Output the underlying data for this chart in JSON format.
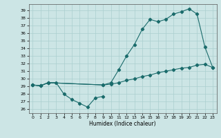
{
  "xlabel": "Humidex (Indice chaleur)",
  "bg_color": "#cce5e5",
  "line_color": "#1a6b6b",
  "grid_color": "#aacfcf",
  "xlim": [
    -0.5,
    23.5
  ],
  "ylim": [
    25.5,
    39.8
  ],
  "yticks": [
    26,
    27,
    28,
    29,
    30,
    31,
    32,
    33,
    34,
    35,
    36,
    37,
    38,
    39
  ],
  "xticks": [
    0,
    1,
    2,
    3,
    4,
    5,
    6,
    7,
    8,
    9,
    10,
    11,
    12,
    13,
    14,
    15,
    16,
    17,
    18,
    19,
    20,
    21,
    22,
    23
  ],
  "upper_x": [
    0,
    1,
    2,
    9,
    10,
    11,
    12,
    13,
    14,
    15,
    16,
    17,
    18,
    19,
    20,
    21,
    22,
    23
  ],
  "upper_y": [
    29.2,
    29.1,
    29.5,
    29.2,
    29.5,
    31.2,
    33.0,
    34.5,
    36.5,
    37.8,
    37.5,
    37.8,
    38.5,
    38.8,
    39.2,
    38.5,
    34.2,
    31.5
  ],
  "lower_x": [
    0,
    1,
    2,
    3,
    4,
    5,
    6,
    7,
    8,
    9
  ],
  "lower_y": [
    29.2,
    29.1,
    29.5,
    29.5,
    28.0,
    27.3,
    26.8,
    26.3,
    27.5,
    27.7
  ],
  "flat_x": [
    0,
    1,
    2,
    9,
    10,
    11,
    12,
    13,
    14,
    15,
    16,
    17,
    18,
    19,
    20,
    21,
    22,
    23
  ],
  "flat_y": [
    29.2,
    29.1,
    29.5,
    29.2,
    29.3,
    29.5,
    29.8,
    30.0,
    30.3,
    30.5,
    30.8,
    31.0,
    31.2,
    31.4,
    31.5,
    31.8,
    31.9,
    31.5
  ]
}
